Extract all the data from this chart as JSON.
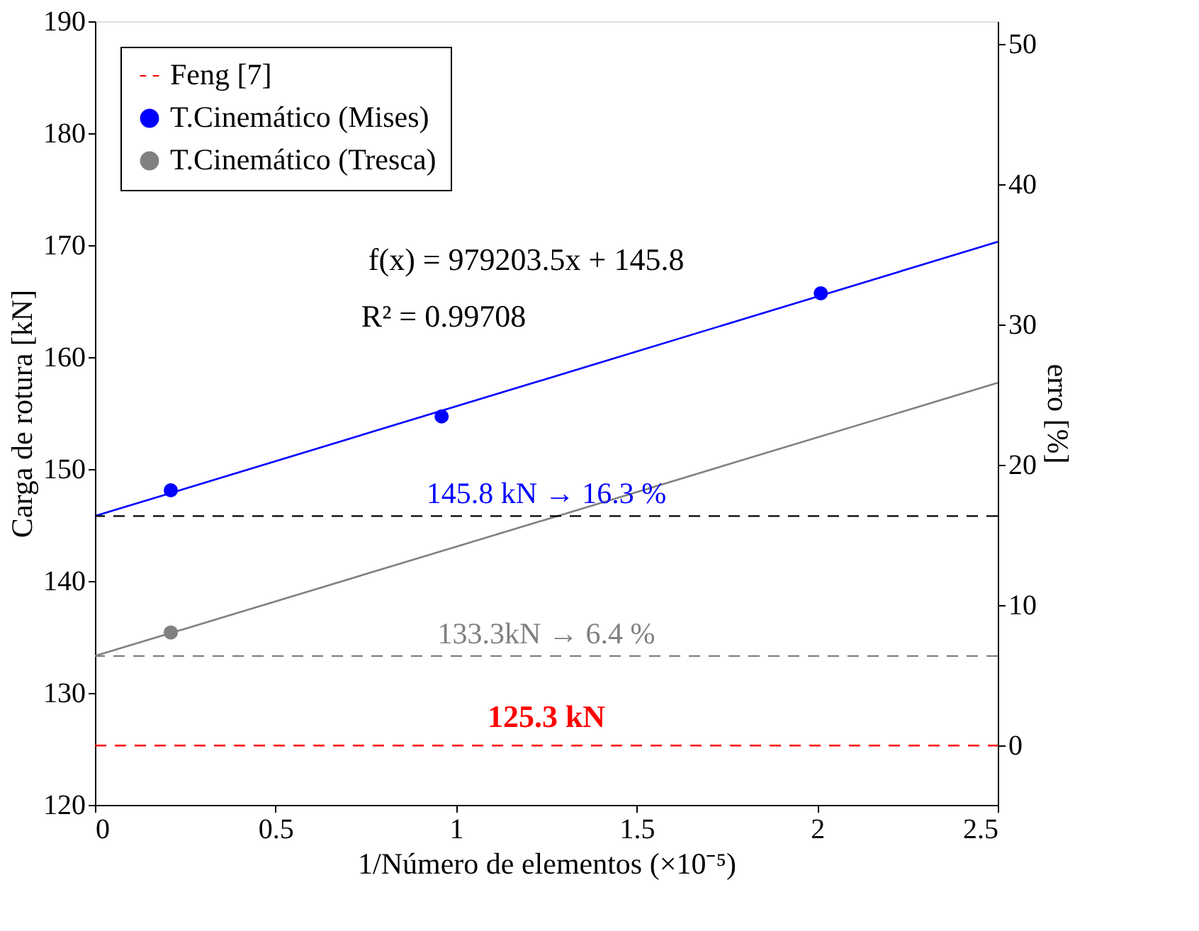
{
  "chart_data": {
    "type": "scatter",
    "xlabel": "1/Número de elementos (×10⁻⁵)",
    "ylabel": "Carga de rotura [kN]",
    "y2label": "erro [%]",
    "xlim": [
      0,
      2.5
    ],
    "xticks": [
      0,
      0.5,
      1,
      1.5,
      2,
      2.5
    ],
    "ylim": [
      120,
      190
    ],
    "yticks": [
      120,
      130,
      140,
      150,
      160,
      170,
      180,
      190
    ],
    "y2lim": [
      -4.23,
      51.64
    ],
    "y2ticks": [
      0,
      10,
      20,
      30,
      40,
      50
    ],
    "grid": false,
    "legend": "top left",
    "marker": "circle",
    "series": [
      {
        "name": "Feng [7]",
        "type": "line",
        "line_style": "dashed",
        "color": "#ff0000",
        "x": [
          0,
          1.25,
          2.5
        ],
        "values": [
          125.3,
          125.3,
          125.3
        ],
        "marker": "none",
        "value_labels": [
          null,
          "125.3 kN",
          null
        ]
      },
      {
        "name": "T.Cinemático (Mises)",
        "color": "#0000ff",
        "x": [
          0.21,
          0.96,
          2.01
        ],
        "values": [
          148.1,
          154.7,
          165.7
        ]
      },
      {
        "name": "T.Cinemático (Tresca)",
        "color": "#808080",
        "x": [
          0.21
        ],
        "values": [
          135.4
        ]
      },
      {
        "type": "line",
        "line_style": "solid",
        "marker": "none",
        "color": "#0000ff",
        "x": [
          0,
          2.5
        ],
        "values": [
          145.8,
          170.3
        ]
      },
      {
        "type": "line",
        "line_style": "solid",
        "marker": "none",
        "color": "#808080",
        "x": [
          0,
          2.5
        ],
        "values": [
          133.3,
          157.7
        ]
      }
    ],
    "ref_lines": [
      {
        "axis": "y",
        "value": 145.8,
        "label": "145.8 kN → 16.3 %",
        "color": "#000000",
        "line_style": "dashed"
      },
      {
        "axis": "y",
        "value": 133.3,
        "label": "133.3kN → 6.4 %",
        "color": "#808080",
        "line_style": "dashed"
      }
    ],
    "annotations": [
      "f(x) = 979203.5x + 145.8",
      "R² = 0.99708"
    ]
  }
}
